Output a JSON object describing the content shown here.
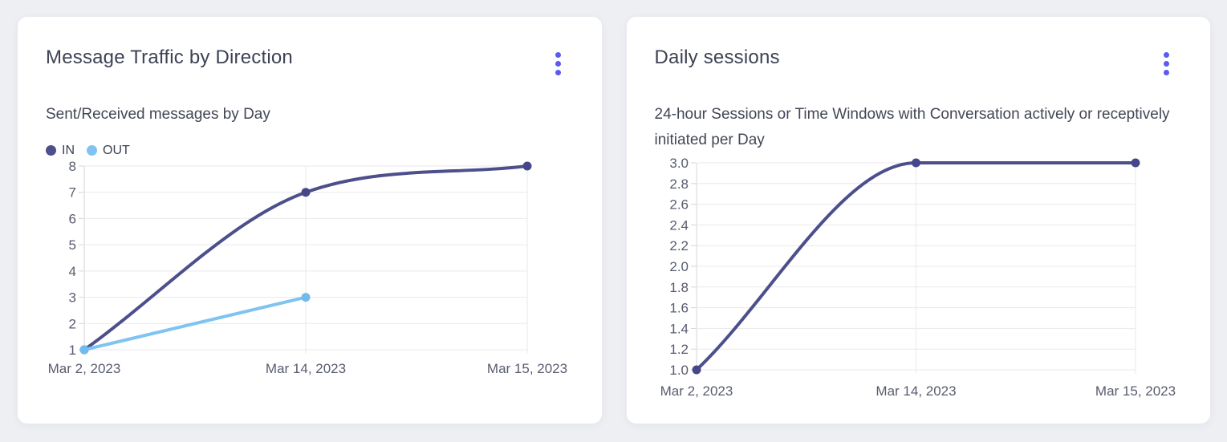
{
  "page": {
    "background_color": "#edeff3",
    "card_color": "#ffffff",
    "accent_color": "#5a5bf0"
  },
  "icons": {
    "card_menu": "kebab-menu-icon"
  },
  "chart_data": [
    {
      "type": "line",
      "title": "Message Traffic by Direction",
      "subtitle": "Sent/Received messages by Day",
      "categories": [
        "Mar 2, 2023",
        "Mar 14, 2023",
        "Mar 15, 2023"
      ],
      "series": [
        {
          "name": "IN",
          "color": "#4d4f8c",
          "point_color": "#45478a",
          "values": [
            1,
            7,
            8
          ]
        },
        {
          "name": "OUT",
          "color": "#7ec3f1",
          "point_color": "#6fbbee",
          "values": [
            1,
            3,
            null
          ]
        }
      ],
      "ylim": [
        1,
        8
      ],
      "ytick_step": 1,
      "ytick_labels": [
        "8",
        "7",
        "6",
        "5",
        "4",
        "3",
        "2",
        "1"
      ],
      "legend": {
        "position": "top-left",
        "entries": [
          "IN",
          "OUT"
        ]
      },
      "grid": true,
      "smooth": true
    },
    {
      "type": "line",
      "title": "Daily sessions",
      "subtitle": "24-hour Sessions or Time Windows with Conversation actively or receptively initiated per Day",
      "categories": [
        "Mar 2, 2023",
        "Mar 14, 2023",
        "Mar 15, 2023"
      ],
      "series": [
        {
          "name": "Daily sessions",
          "color": "#4d4f8c",
          "point_color": "#45478a",
          "values": [
            1.0,
            3.0,
            3.0
          ]
        }
      ],
      "ylim": [
        1.0,
        3.0
      ],
      "ytick_step": 0.2,
      "ytick_labels": [
        "3.0",
        "2.8",
        "2.6",
        "2.4",
        "2.2",
        "2.0",
        "1.8",
        "1.6",
        "1.4",
        "1.2",
        "1.0"
      ],
      "legend": null,
      "grid": true,
      "smooth": true
    }
  ]
}
